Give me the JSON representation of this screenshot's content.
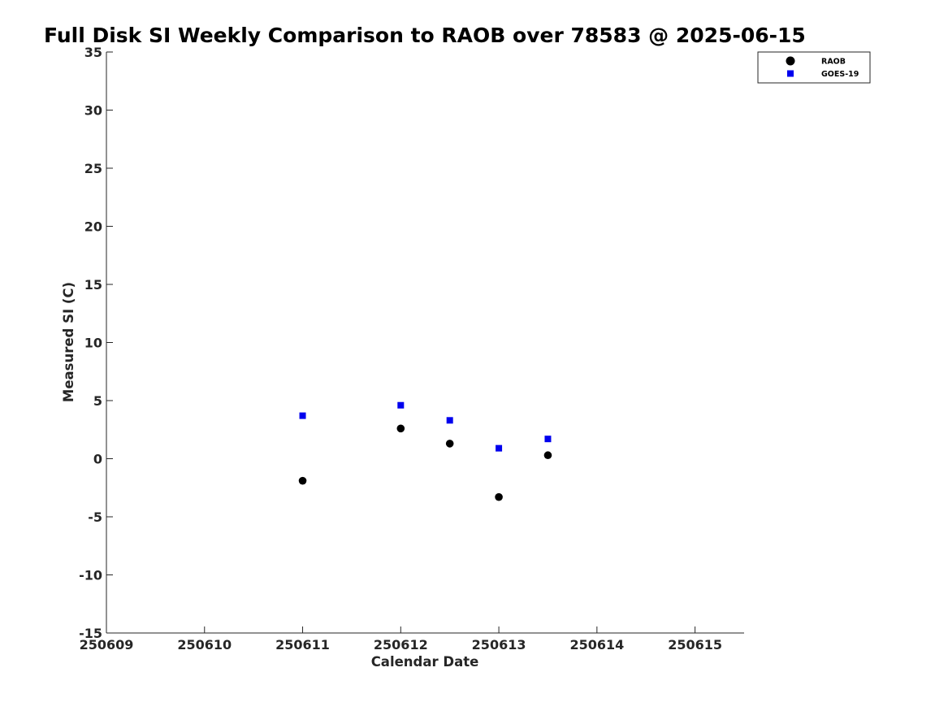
{
  "chart_data": {
    "type": "scatter",
    "title": "Full Disk SI Weekly Comparison to RAOB over 78583 @ 2025-06-15",
    "xlabel": "Calendar Date",
    "ylabel": "Measured SI (C)",
    "xlim": [
      250609,
      250615.5
    ],
    "ylim": [
      -15,
      35
    ],
    "xticks": [
      250609,
      250610,
      250611,
      250612,
      250613,
      250614,
      250615
    ],
    "xtick_labels": [
      "250609",
      "250610",
      "250611",
      "250612",
      "250613",
      "250614",
      "250615"
    ],
    "yticks": [
      -15,
      -10,
      -5,
      0,
      5,
      10,
      15,
      20,
      25,
      30,
      35
    ],
    "ytick_labels": [
      "-15",
      "-10",
      "-5",
      "0",
      "5",
      "10",
      "15",
      "20",
      "25",
      "30",
      "35"
    ],
    "grid": false,
    "legend_position": "top-right",
    "series": [
      {
        "name": "RAOB",
        "marker": "circle",
        "color": "#000000",
        "x": [
          250611,
          250612,
          250612.5,
          250613,
          250613.5
        ],
        "y": [
          -1.9,
          2.6,
          1.3,
          -3.3,
          0.3
        ]
      },
      {
        "name": "GOES-19",
        "marker": "square",
        "color": "#0000ee",
        "x": [
          250611,
          250612,
          250612.5,
          250613,
          250613.5
        ],
        "y": [
          3.7,
          4.6,
          3.3,
          0.9,
          1.7
        ]
      }
    ]
  }
}
